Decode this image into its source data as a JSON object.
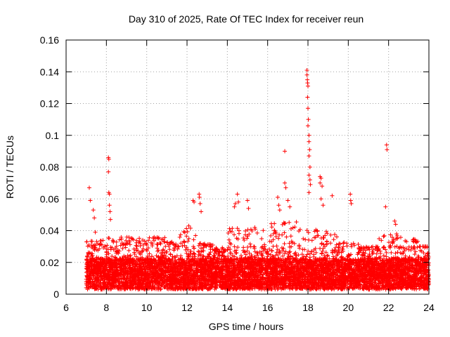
{
  "chart_data": {
    "type": "scatter",
    "title": "Day 310 of 2025, Rate Of TEC Index for receiver reun",
    "xlabel": "GPS time / hours",
    "ylabel": "ROTI / TECUs",
    "xlim": [
      6,
      24
    ],
    "ylim": [
      0,
      0.16
    ],
    "xticks": [
      6,
      8,
      10,
      12,
      14,
      16,
      18,
      20,
      22,
      24
    ],
    "xtick_labels": [
      "6",
      "8",
      "10",
      "12",
      "14",
      "16",
      "18",
      "20",
      "22",
      "24"
    ],
    "yticks": [
      0,
      0.02,
      0.04,
      0.06,
      0.08,
      0.1,
      0.12,
      0.14,
      0.16
    ],
    "ytick_labels": [
      "0",
      "0.02",
      "0.04",
      "0.06",
      "0.08",
      "0.1",
      "0.12",
      "0.14",
      "0.16"
    ],
    "grid": true,
    "marker": "+",
    "marker_color": "#ff0000",
    "series": [
      {
        "name": "ROTI",
        "x_range_hours": [
          7.0,
          24.0
        ],
        "typical_band": [
          0.003,
          0.03
        ],
        "notable_points": [
          {
            "x": 7.15,
            "y": 0.067
          },
          {
            "x": 7.2,
            "y": 0.059
          },
          {
            "x": 7.35,
            "y": 0.053
          },
          {
            "x": 7.4,
            "y": 0.048
          },
          {
            "x": 7.45,
            "y": 0.039
          },
          {
            "x": 8.1,
            "y": 0.086
          },
          {
            "x": 8.12,
            "y": 0.085
          },
          {
            "x": 8.1,
            "y": 0.077
          },
          {
            "x": 8.12,
            "y": 0.064
          },
          {
            "x": 8.15,
            "y": 0.063
          },
          {
            "x": 8.15,
            "y": 0.056
          },
          {
            "x": 8.18,
            "y": 0.052
          },
          {
            "x": 8.2,
            "y": 0.047
          },
          {
            "x": 12.3,
            "y": 0.059
          },
          {
            "x": 12.35,
            "y": 0.058
          },
          {
            "x": 12.6,
            "y": 0.063
          },
          {
            "x": 12.62,
            "y": 0.061
          },
          {
            "x": 12.65,
            "y": 0.057
          },
          {
            "x": 12.7,
            "y": 0.052
          },
          {
            "x": 14.5,
            "y": 0.063
          },
          {
            "x": 14.4,
            "y": 0.057
          },
          {
            "x": 14.55,
            "y": 0.058
          },
          {
            "x": 14.35,
            "y": 0.055
          },
          {
            "x": 15.0,
            "y": 0.059
          },
          {
            "x": 15.05,
            "y": 0.054
          },
          {
            "x": 16.5,
            "y": 0.061
          },
          {
            "x": 16.55,
            "y": 0.056
          },
          {
            "x": 16.6,
            "y": 0.053
          },
          {
            "x": 16.85,
            "y": 0.09
          },
          {
            "x": 16.85,
            "y": 0.07
          },
          {
            "x": 16.9,
            "y": 0.067
          },
          {
            "x": 17.0,
            "y": 0.059
          },
          {
            "x": 17.1,
            "y": 0.055
          },
          {
            "x": 17.95,
            "y": 0.141
          },
          {
            "x": 17.95,
            "y": 0.138
          },
          {
            "x": 17.97,
            "y": 0.135
          },
          {
            "x": 17.98,
            "y": 0.133
          },
          {
            "x": 18.0,
            "y": 0.131
          },
          {
            "x": 17.98,
            "y": 0.124
          },
          {
            "x": 18.0,
            "y": 0.117
          },
          {
            "x": 18.02,
            "y": 0.11
          },
          {
            "x": 18.0,
            "y": 0.106
          },
          {
            "x": 18.05,
            "y": 0.1
          },
          {
            "x": 18.05,
            "y": 0.096
          },
          {
            "x": 18.08,
            "y": 0.091
          },
          {
            "x": 18.05,
            "y": 0.087
          },
          {
            "x": 18.1,
            "y": 0.08
          },
          {
            "x": 18.05,
            "y": 0.075
          },
          {
            "x": 18.1,
            "y": 0.072
          },
          {
            "x": 18.12,
            "y": 0.069
          },
          {
            "x": 18.05,
            "y": 0.064
          },
          {
            "x": 18.6,
            "y": 0.074
          },
          {
            "x": 18.65,
            "y": 0.073
          },
          {
            "x": 18.6,
            "y": 0.07
          },
          {
            "x": 18.7,
            "y": 0.068
          },
          {
            "x": 18.65,
            "y": 0.06
          },
          {
            "x": 18.75,
            "y": 0.056
          },
          {
            "x": 19.2,
            "y": 0.062
          },
          {
            "x": 20.1,
            "y": 0.063
          },
          {
            "x": 20.12,
            "y": 0.059
          },
          {
            "x": 20.15,
            "y": 0.057
          },
          {
            "x": 21.9,
            "y": 0.094
          },
          {
            "x": 21.92,
            "y": 0.091
          },
          {
            "x": 21.85,
            "y": 0.055
          },
          {
            "x": 22.3,
            "y": 0.046
          },
          {
            "x": 22.35,
            "y": 0.044
          }
        ]
      }
    ],
    "activity_profile": [
      {
        "from": 7.0,
        "to": 8.0,
        "peak": 0.034
      },
      {
        "from": 8.0,
        "to": 9.0,
        "peak": 0.036
      },
      {
        "from": 9.0,
        "to": 10.0,
        "peak": 0.036
      },
      {
        "from": 10.0,
        "to": 11.0,
        "peak": 0.036
      },
      {
        "from": 11.0,
        "to": 11.6,
        "peak": 0.033
      },
      {
        "from": 11.6,
        "to": 12.5,
        "peak": 0.043
      },
      {
        "from": 12.5,
        "to": 13.3,
        "peak": 0.032
      },
      {
        "from": 13.3,
        "to": 14.0,
        "peak": 0.026
      },
      {
        "from": 14.0,
        "to": 15.0,
        "peak": 0.042
      },
      {
        "from": 15.0,
        "to": 16.0,
        "peak": 0.042
      },
      {
        "from": 16.0,
        "to": 17.5,
        "peak": 0.046
      },
      {
        "from": 17.5,
        "to": 18.4,
        "peak": 0.044
      },
      {
        "from": 18.4,
        "to": 19.5,
        "peak": 0.04
      },
      {
        "from": 19.5,
        "to": 20.5,
        "peak": 0.033
      },
      {
        "from": 20.5,
        "to": 21.5,
        "peak": 0.028
      },
      {
        "from": 21.5,
        "to": 22.5,
        "peak": 0.038
      },
      {
        "from": 22.5,
        "to": 23.5,
        "peak": 0.036
      },
      {
        "from": 23.5,
        "to": 24.0,
        "peak": 0.03
      }
    ]
  }
}
